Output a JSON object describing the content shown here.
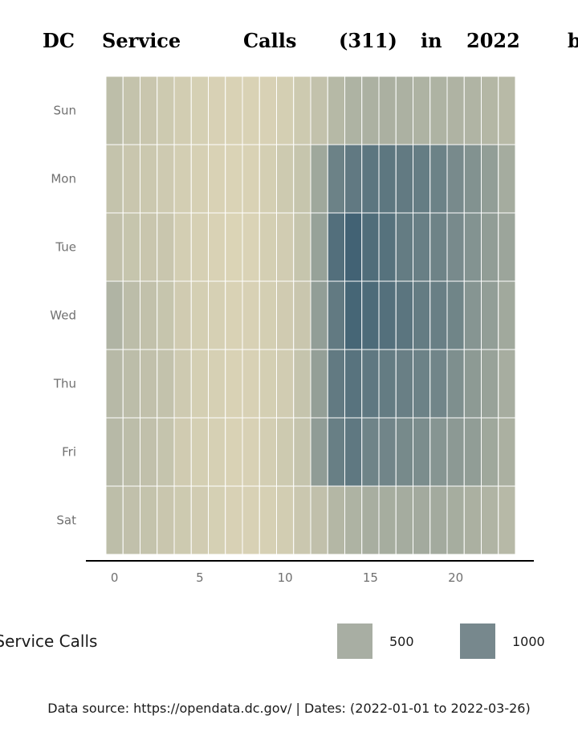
{
  "title_words": [
    "DC",
    "Service",
    "Calls",
    "(311)",
    "in",
    "2022",
    "b"
  ],
  "caption": "Data source: https://opendata.dc.gov/ | Dates: (2022-01-01 to 2022-03-26)",
  "legend": {
    "title": "f Service Calls",
    "items": [
      {
        "label": "500",
        "color": "#a8aea3"
      },
      {
        "label": "1000",
        "color": "#77888d"
      }
    ]
  },
  "chart_data": {
    "type": "heatmap",
    "x_ticks": [
      0,
      5,
      10,
      15,
      20
    ],
    "x": [
      0,
      1,
      2,
      3,
      4,
      5,
      6,
      7,
      8,
      9,
      10,
      11,
      12,
      13,
      14,
      15,
      16,
      17,
      18,
      19,
      20,
      21,
      22,
      23
    ],
    "days": [
      "Sun",
      "Mon",
      "Tue",
      "Wed",
      "Thu",
      "Fri",
      "Sat"
    ],
    "color_scale": {
      "low": "#e2d9b9",
      "high": "#35596f",
      "min": 0,
      "max": 1500
    },
    "values": [
      [
        320,
        260,
        220,
        180,
        140,
        110,
        90,
        80,
        80,
        90,
        120,
        180,
        270,
        380,
        450,
        470,
        480,
        470,
        450,
        450,
        440,
        430,
        400,
        360
      ],
      [
        260,
        220,
        200,
        170,
        130,
        100,
        80,
        70,
        80,
        120,
        180,
        240,
        580,
        1020,
        1120,
        1160,
        1150,
        1110,
        1080,
        1020,
        920,
        830,
        690,
        530
      ],
      [
        280,
        240,
        220,
        220,
        130,
        100,
        80,
        60,
        70,
        120,
        150,
        240,
        650,
        1240,
        1390,
        1270,
        1210,
        1090,
        1060,
        1010,
        920,
        820,
        700,
        610
      ],
      [
        430,
        330,
        280,
        240,
        160,
        120,
        100,
        80,
        90,
        120,
        160,
        220,
        690,
        1110,
        1350,
        1290,
        1230,
        1170,
        1090,
        1050,
        990,
        800,
        690,
        560
      ],
      [
        370,
        330,
        290,
        270,
        170,
        120,
        100,
        80,
        90,
        120,
        150,
        250,
        680,
        1110,
        1200,
        1140,
        1090,
        1050,
        1020,
        980,
        870,
        740,
        640,
        510
      ],
      [
        370,
        330,
        290,
        250,
        160,
        120,
        100,
        80,
        90,
        130,
        180,
        250,
        710,
        1060,
        1140,
        1000,
        980,
        930,
        890,
        800,
        750,
        700,
        580,
        480
      ],
      [
        320,
        290,
        260,
        220,
        180,
        150,
        110,
        90,
        90,
        100,
        140,
        210,
        290,
        400,
        450,
        500,
        520,
        530,
        550,
        550,
        520,
        480,
        430,
        370
      ]
    ]
  }
}
